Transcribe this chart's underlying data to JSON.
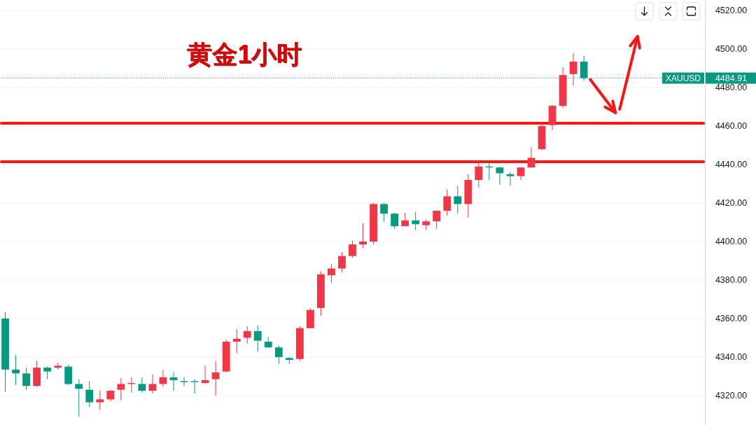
{
  "chart_data": {
    "type": "candlestick",
    "title": "黄金1小时",
    "categories": [
      null,
      null,
      null,
      null,
      null,
      null,
      null,
      null,
      null,
      null,
      null,
      null,
      null,
      null,
      null,
      null,
      null,
      null,
      null,
      null,
      null,
      null,
      null,
      null,
      null,
      null,
      null,
      null,
      null,
      null,
      null,
      null,
      null,
      null,
      null,
      null,
      null,
      null,
      null,
      null,
      null,
      null,
      null,
      null,
      null,
      null,
      null,
      null,
      null,
      null,
      null,
      null,
      null,
      null,
      null,
      null,
      null,
      null,
      null,
      null,
      null,
      null,
      null,
      null,
      null,
      null,
      null
    ],
    "ohlc": [
      [
        4360,
        4363.5,
        4322,
        4333.5
      ],
      [
        4333.5,
        4341,
        4325.5,
        4331.5
      ],
      [
        4331.5,
        4334.5,
        4323,
        4325
      ],
      [
        4325,
        4338,
        4324.5,
        4334.5
      ],
      [
        4334.5,
        4335,
        4328.5,
        4332.5
      ],
      [
        4334.5,
        4337,
        4333.5,
        4335.5
      ],
      [
        4335,
        4336,
        4325.5,
        4326
      ],
      [
        4326,
        4328.5,
        4309,
        4323.5
      ],
      [
        4323,
        4327.5,
        4314,
        4316.5
      ],
      [
        4316.5,
        4322.5,
        4312.5,
        4318
      ],
      [
        4318,
        4323,
        4317,
        4322.5
      ],
      [
        4323,
        4329,
        4317.5,
        4326
      ],
      [
        4326,
        4329.5,
        4321.5,
        4326.5
      ],
      [
        4326,
        4329.5,
        4321.5,
        4322.5
      ],
      [
        4322.5,
        4331,
        4321,
        4326
      ],
      [
        4326,
        4333.5,
        4324.5,
        4329.5
      ],
      [
        4329.5,
        4332,
        4322.5,
        4328
      ],
      [
        4327.5,
        4329.5,
        4325,
        4327
      ],
      [
        4327.5,
        4328.5,
        4321,
        4327
      ],
      [
        4326.5,
        4335.5,
        4326,
        4328
      ],
      [
        4328.5,
        4338,
        4320,
        4332
      ],
      [
        4332.5,
        4349,
        4332,
        4348
      ],
      [
        4348,
        4354.5,
        4342,
        4349.5
      ],
      [
        4350,
        4356,
        4347,
        4353.5
      ],
      [
        4353.5,
        4356.5,
        4343,
        4348.5
      ],
      [
        4348,
        4350.5,
        4345,
        4345
      ],
      [
        4345,
        4346,
        4336.5,
        4340
      ],
      [
        4339.5,
        4340,
        4336.5,
        4338.5
      ],
      [
        4339,
        4356,
        4338,
        4355
      ],
      [
        4355,
        4365.5,
        4355,
        4364.5
      ],
      [
        4365.5,
        4384.5,
        4361.5,
        4383
      ],
      [
        4382.5,
        4388.5,
        4378.5,
        4386
      ],
      [
        4386,
        4394.5,
        4384,
        4392.5
      ],
      [
        4392.5,
        4400.5,
        4391.5,
        4398.5
      ],
      [
        4398.5,
        4409.5,
        4396.5,
        4400
      ],
      [
        4400,
        4420,
        4398.5,
        4419.5
      ],
      [
        4419.5,
        4420,
        4410.5,
        4414.5
      ],
      [
        4414.5,
        4415,
        4406.5,
        4408
      ],
      [
        4408,
        4415,
        4408,
        4411
      ],
      [
        4411,
        4415.5,
        4406,
        4409
      ],
      [
        4408.5,
        4411.5,
        4406,
        4410.5
      ],
      [
        4410.5,
        4416,
        4406.5,
        4416
      ],
      [
        4416,
        4427,
        4413.5,
        4423.5
      ],
      [
        4423.5,
        4429,
        4414.5,
        4419.5
      ],
      [
        4419.5,
        4435,
        4412.5,
        4432
      ],
      [
        4432,
        4441,
        4428,
        4439
      ],
      [
        4439,
        4441,
        4432,
        4438.5
      ],
      [
        4438.5,
        4439,
        4429.5,
        4435.5
      ],
      [
        4435,
        4436,
        4429,
        4434
      ],
      [
        4434,
        4438.5,
        4432,
        4438.5
      ],
      [
        4438.5,
        4449,
        4438.5,
        4443.5
      ],
      [
        4448,
        4462,
        4447.5,
        4460
      ],
      [
        4460.5,
        4471,
        4458,
        4470.5
      ],
      [
        4470.5,
        4490.5,
        4469.5,
        4486.5
      ],
      [
        4487,
        4498,
        4481,
        4493.5
      ],
      [
        4493.5,
        4496.5,
        4483.5,
        4484.91
      ],
      null,
      null,
      null,
      null,
      null,
      null,
      null,
      null,
      null,
      null,
      null
    ],
    "colors": [
      "#089981",
      "#089981",
      "#089981",
      "#f23645",
      "#089981",
      "#f23645",
      "#089981",
      "#089981",
      "#089981",
      "#f23645",
      "#f23645",
      "#f23645",
      "#f23645",
      "#089981",
      "#f23645",
      "#f23645",
      "#089981",
      "#089981",
      "#089981",
      "#f23645",
      "#f23645",
      "#f23645",
      "#f23645",
      "#f23645",
      "#089981",
      "#089981",
      "#089981",
      "#089981",
      "#f23645",
      "#f23645",
      "#f23645",
      "#f23645",
      "#f23645",
      "#f23645",
      "#f23645",
      "#f23645",
      "#089981",
      "#089981",
      "#f23645",
      "#089981",
      "#f23645",
      "#f23645",
      "#f23645",
      "#089981",
      "#f23645",
      "#f23645",
      "#089981",
      "#089981",
      "#089981",
      "#f23645",
      "#f23645",
      "#f23645",
      "#f23645",
      "#f23645",
      "#f23645",
      "#089981",
      null,
      null,
      null,
      null,
      null,
      null,
      null,
      null,
      null,
      null,
      null
    ],
    "ylim": [
      4304.7,
      4525.5
    ],
    "yticks": [
      {
        "value": 4320,
        "label": "4320.00"
      },
      {
        "value": 4340,
        "label": "4340.00"
      },
      {
        "value": 4360,
        "label": "4360.00"
      },
      {
        "value": 4380,
        "label": "4380.00"
      },
      {
        "value": 4400,
        "label": "4400.00"
      },
      {
        "value": 4420,
        "label": "4420.00"
      },
      {
        "value": 4440,
        "label": "4440.00"
      },
      {
        "value": 4460,
        "label": "4460.00"
      },
      {
        "value": 4480,
        "label": "4480.00"
      },
      {
        "value": 4500,
        "label": "4500.00"
      },
      {
        "value": 4520,
        "label": "4520.00"
      }
    ],
    "grid": "y",
    "tick_labels": "y",
    "ref_lines": [
      {
        "axis": "y",
        "value": 4441.5,
        "color": "#ff1414",
        "line_style": "solid"
      },
      {
        "axis": "y",
        "value": 4461.5,
        "color": "#ff1414",
        "line_style": "solid"
      },
      {
        "axis": "y",
        "value": 4484.91,
        "label": "XAUUSD",
        "color": "#089981",
        "line_style": "dotted"
      }
    ],
    "annotations": [
      "4484.91"
    ]
  }
}
